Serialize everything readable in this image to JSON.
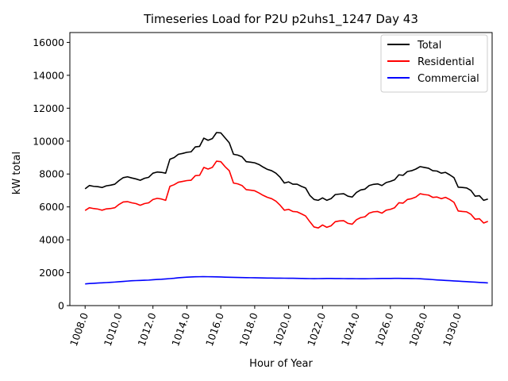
{
  "chart_data": {
    "type": "line",
    "title": "Timeseries Load for P2U p2uhs1_1247  Day 43",
    "xlabel": "Hour of Year",
    "ylabel": "kW total",
    "xlim": [
      1007.1,
      1032.0
    ],
    "ylim": [
      0,
      16600
    ],
    "xticks": [
      1008,
      1010,
      1012,
      1014,
      1016,
      1018,
      1020,
      1022,
      1024,
      1026,
      1028,
      1030
    ],
    "xtick_labels": [
      "1008.0",
      "1010.0",
      "1012.0",
      "1014.0",
      "1016.0",
      "1018.0",
      "1020.0",
      "1022.0",
      "1024.0",
      "1026.0",
      "1028.0",
      "1030.0"
    ],
    "yticks": [
      0,
      2000,
      4000,
      6000,
      8000,
      10000,
      12000,
      14000,
      16000
    ],
    "ytick_labels": [
      "0",
      "2000",
      "4000",
      "6000",
      "8000",
      "10000",
      "12000",
      "14000",
      "16000"
    ],
    "legend_position": "top-right",
    "x_start": 1008.0,
    "x_step": 0.25,
    "series": [
      {
        "name": "Total",
        "color": "#000000",
        "values": [
          7100,
          7300,
          7250,
          7230,
          7180,
          7280,
          7320,
          7380,
          7600,
          7780,
          7830,
          7760,
          7700,
          7620,
          7740,
          7800,
          8050,
          8120,
          8100,
          8050,
          8900,
          9000,
          9200,
          9250,
          9320,
          9350,
          9650,
          9680,
          10180,
          10050,
          10150,
          10520,
          10500,
          10200,
          9900,
          9200,
          9150,
          9050,
          8750,
          8720,
          8680,
          8580,
          8420,
          8280,
          8200,
          8050,
          7800,
          7450,
          7520,
          7380,
          7380,
          7250,
          7150,
          6700,
          6450,
          6400,
          6550,
          6400,
          6500,
          6750,
          6780,
          6800,
          6650,
          6600,
          6880,
          7030,
          7080,
          7300,
          7370,
          7400,
          7300,
          7480,
          7550,
          7650,
          7950,
          7920,
          8150,
          8200,
          8300,
          8450,
          8400,
          8350,
          8200,
          8180,
          8050,
          8100,
          7950,
          7780,
          7200,
          7180,
          7150,
          7000,
          6650,
          6680,
          6400,
          6480
        ]
      },
      {
        "name": "Residential",
        "color": "#ff0000",
        "values": [
          5780,
          5950,
          5900,
          5870,
          5800,
          5880,
          5900,
          5950,
          6150,
          6300,
          6320,
          6250,
          6200,
          6100,
          6200,
          6250,
          6450,
          6520,
          6480,
          6400,
          7250,
          7350,
          7500,
          7550,
          7600,
          7620,
          7900,
          7920,
          8400,
          8300,
          8400,
          8780,
          8750,
          8450,
          8200,
          7450,
          7400,
          7300,
          7050,
          7020,
          6980,
          6850,
          6700,
          6580,
          6500,
          6350,
          6100,
          5800,
          5850,
          5720,
          5700,
          5580,
          5450,
          5100,
          4780,
          4720,
          4900,
          4760,
          4850,
          5100,
          5150,
          5160,
          5000,
          4950,
          5220,
          5350,
          5400,
          5620,
          5700,
          5720,
          5620,
          5800,
          5850,
          5950,
          6250,
          6230,
          6450,
          6500,
          6600,
          6800,
          6750,
          6720,
          6580,
          6600,
          6500,
          6580,
          6450,
          6280,
          5750,
          5720,
          5700,
          5550,
          5250,
          5280,
          5020,
          5120
        ]
      },
      {
        "name": "Commercial",
        "color": "#0000ff",
        "values": [
          1320,
          1340,
          1355,
          1370,
          1385,
          1400,
          1415,
          1430,
          1450,
          1470,
          1490,
          1510,
          1520,
          1530,
          1540,
          1550,
          1570,
          1590,
          1600,
          1620,
          1640,
          1660,
          1690,
          1710,
          1730,
          1740,
          1750,
          1755,
          1760,
          1755,
          1750,
          1745,
          1740,
          1730,
          1720,
          1715,
          1710,
          1705,
          1700,
          1695,
          1690,
          1685,
          1680,
          1675,
          1672,
          1670,
          1668,
          1665,
          1662,
          1660,
          1655,
          1650,
          1645,
          1640,
          1638,
          1640,
          1645,
          1650,
          1648,
          1645,
          1642,
          1640,
          1638,
          1636,
          1635,
          1633,
          1632,
          1635,
          1640,
          1645,
          1648,
          1650,
          1652,
          1655,
          1655,
          1652,
          1650,
          1645,
          1640,
          1630,
          1615,
          1600,
          1580,
          1560,
          1545,
          1530,
          1515,
          1500,
          1485,
          1470,
          1455,
          1440,
          1425,
          1410,
          1395,
          1380
        ]
      }
    ]
  }
}
